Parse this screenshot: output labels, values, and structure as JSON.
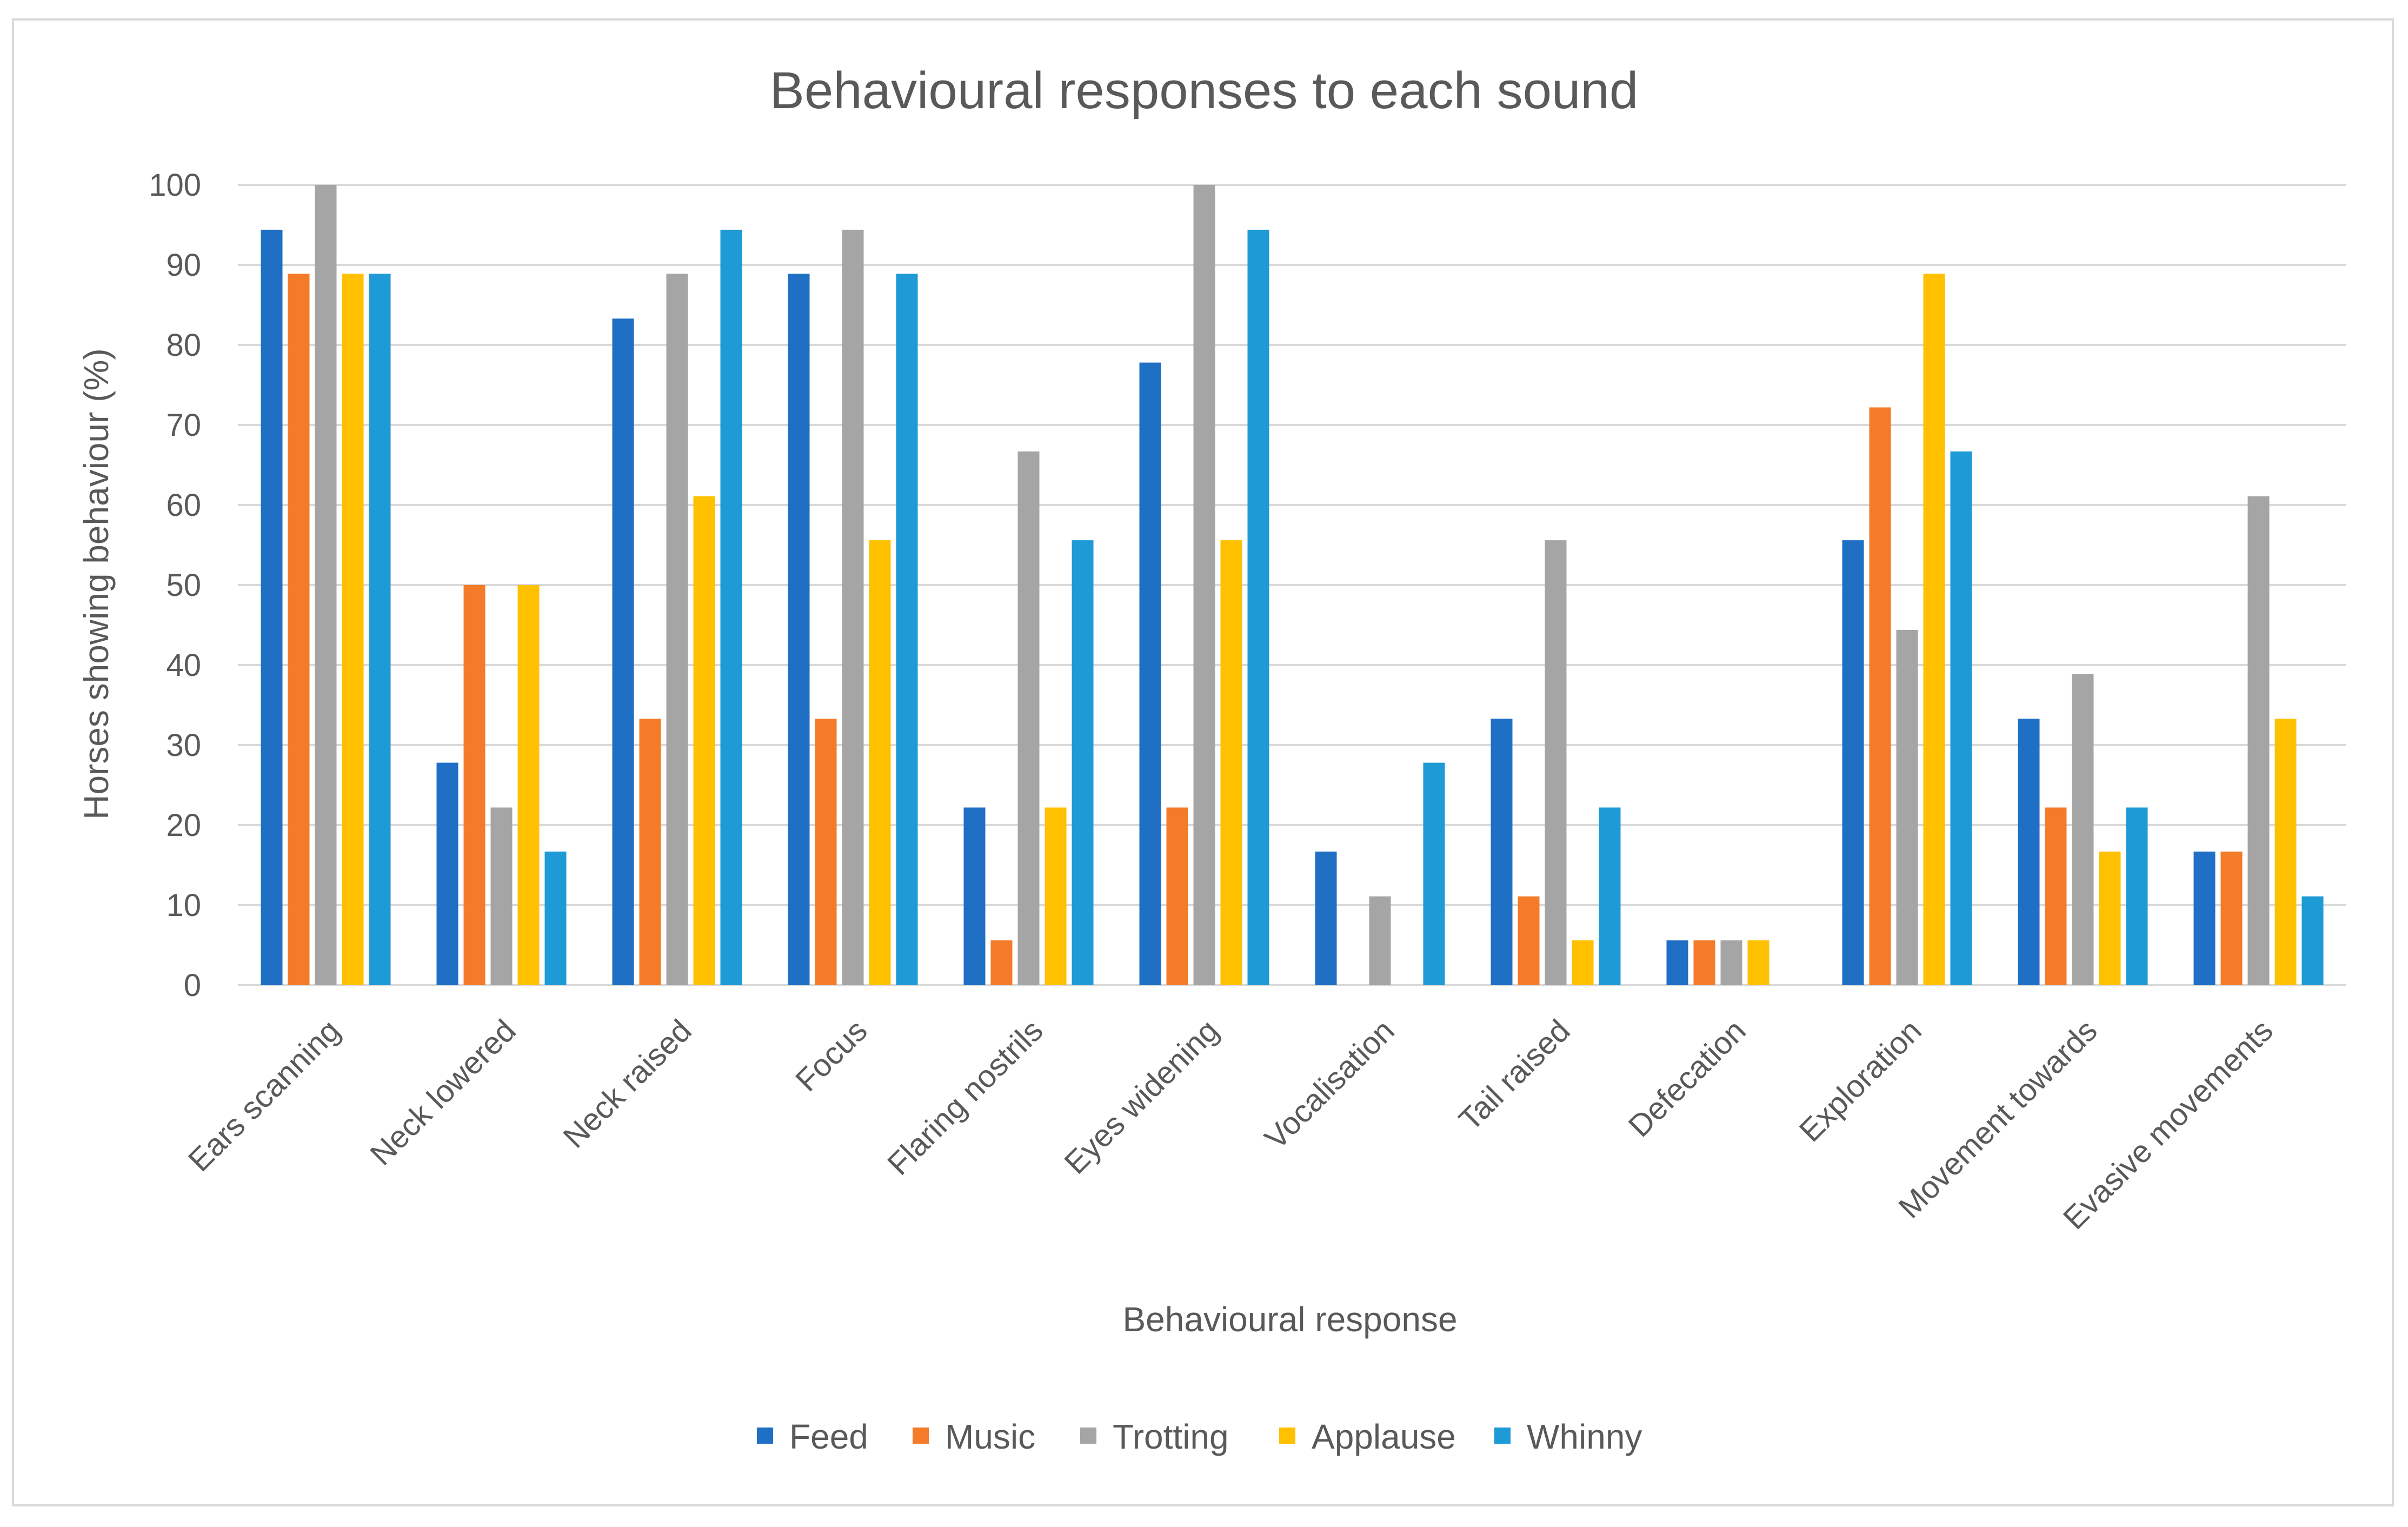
{
  "chart_data": {
    "type": "bar",
    "title": "Behavioural responses to each sound",
    "xlabel": "Behavioural response",
    "ylabel": "Horses showing behaviour (%)",
    "ylim": [
      0,
      100
    ],
    "yticks": [
      0,
      10,
      20,
      30,
      40,
      50,
      60,
      70,
      80,
      90,
      100
    ],
    "grid": true,
    "legend_position": "bottom",
    "categories": [
      "Ears scanning",
      "Neck lowered",
      "Neck raised",
      "Focus",
      "Flaring nostrils",
      "Eyes widening",
      "Vocalisation",
      "Tail raised",
      "Defecation",
      "Exploration",
      "Movement towards",
      "Evasive movements"
    ],
    "series": [
      {
        "name": "Feed",
        "color": "#1f6fc5",
        "values": [
          94.4,
          27.8,
          83.3,
          88.9,
          22.2,
          77.8,
          16.7,
          33.3,
          5.6,
          55.6,
          33.3,
          16.7
        ]
      },
      {
        "name": "Music",
        "color": "#f47b2a",
        "values": [
          88.9,
          50,
          33.3,
          33.3,
          5.6,
          22.2,
          0,
          11.1,
          5.6,
          72.2,
          22.2,
          16.7
        ]
      },
      {
        "name": "Trotting",
        "color": "#a5a5a5",
        "values": [
          100,
          22.2,
          88.9,
          94.4,
          66.7,
          100,
          11.1,
          55.6,
          5.6,
          44.4,
          38.9,
          61.1
        ]
      },
      {
        "name": "Applause",
        "color": "#ffc000",
        "values": [
          88.9,
          50,
          61.1,
          55.6,
          22.2,
          55.6,
          0,
          5.6,
          5.6,
          88.9,
          16.7,
          33.3
        ]
      },
      {
        "name": "Whinny",
        "color": "#1e9ad6",
        "values": [
          88.9,
          16.7,
          94.4,
          88.9,
          55.6,
          94.4,
          27.8,
          22.2,
          0,
          66.7,
          22.2,
          11.1
        ]
      }
    ]
  }
}
